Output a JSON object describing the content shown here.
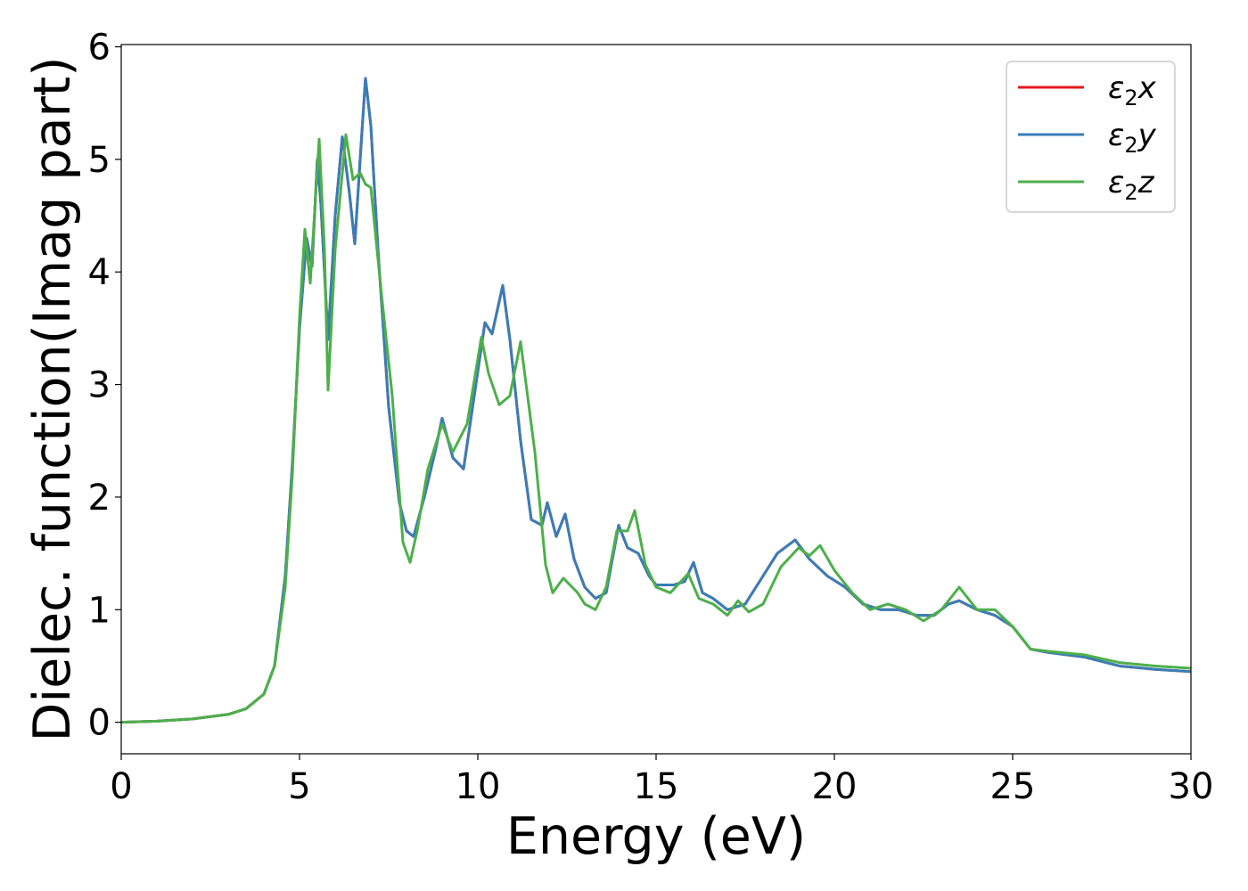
{
  "chart_data": {
    "type": "line",
    "title": "",
    "xlabel": "Energy (eV)",
    "ylabel": "Dielec. function(Imag part)",
    "xlim": [
      0,
      30
    ],
    "ylim": [
      -0.28,
      6.02
    ],
    "xticks": [
      0,
      5,
      10,
      15,
      20,
      25,
      30
    ],
    "yticks": [
      0,
      1,
      2,
      3,
      4,
      5,
      6
    ],
    "grid": false,
    "legend_position": "top-right",
    "series": [
      {
        "name": "ε₂x",
        "label_base": "ε",
        "label_sub": "2",
        "label_var": "x",
        "color": "#e41a1c",
        "points": [
          [
            0,
            0.0
          ],
          [
            1,
            0.01
          ],
          [
            2,
            0.03
          ],
          [
            3,
            0.07
          ],
          [
            3.5,
            0.12
          ],
          [
            4,
            0.25
          ],
          [
            4.3,
            0.5
          ],
          [
            4.6,
            1.3
          ],
          [
            4.8,
            2.3
          ],
          [
            5.0,
            3.5
          ],
          [
            5.2,
            4.3
          ],
          [
            5.35,
            4.05
          ],
          [
            5.5,
            5.0
          ],
          [
            5.6,
            4.6
          ],
          [
            5.8,
            3.4
          ],
          [
            6.0,
            4.5
          ],
          [
            6.2,
            5.2
          ],
          [
            6.4,
            4.7
          ],
          [
            6.55,
            4.25
          ],
          [
            6.7,
            5.0
          ],
          [
            6.85,
            5.72
          ],
          [
            7.0,
            5.3
          ],
          [
            7.2,
            4.2
          ],
          [
            7.5,
            2.8
          ],
          [
            7.8,
            1.95
          ],
          [
            8.0,
            1.7
          ],
          [
            8.2,
            1.65
          ],
          [
            8.5,
            2.0
          ],
          [
            8.8,
            2.4
          ],
          [
            9.0,
            2.7
          ],
          [
            9.3,
            2.35
          ],
          [
            9.6,
            2.25
          ],
          [
            9.9,
            2.9
          ],
          [
            10.2,
            3.55
          ],
          [
            10.4,
            3.45
          ],
          [
            10.7,
            3.88
          ],
          [
            10.9,
            3.4
          ],
          [
            11.2,
            2.5
          ],
          [
            11.5,
            1.8
          ],
          [
            11.8,
            1.75
          ],
          [
            11.95,
            1.95
          ],
          [
            12.2,
            1.65
          ],
          [
            12.45,
            1.85
          ],
          [
            12.7,
            1.45
          ],
          [
            13.0,
            1.2
          ],
          [
            13.3,
            1.1
          ],
          [
            13.6,
            1.15
          ],
          [
            13.95,
            1.75
          ],
          [
            14.2,
            1.55
          ],
          [
            14.5,
            1.5
          ],
          [
            14.8,
            1.3
          ],
          [
            15.0,
            1.22
          ],
          [
            15.5,
            1.22
          ],
          [
            15.8,
            1.25
          ],
          [
            16.05,
            1.42
          ],
          [
            16.3,
            1.15
          ],
          [
            16.6,
            1.1
          ],
          [
            17.0,
            1.0
          ],
          [
            17.5,
            1.05
          ],
          [
            18.0,
            1.3
          ],
          [
            18.4,
            1.5
          ],
          [
            18.9,
            1.62
          ],
          [
            19.3,
            1.45
          ],
          [
            19.8,
            1.3
          ],
          [
            20.3,
            1.2
          ],
          [
            20.8,
            1.05
          ],
          [
            21.3,
            1.0
          ],
          [
            21.8,
            1.0
          ],
          [
            22.3,
            0.95
          ],
          [
            22.8,
            0.95
          ],
          [
            23.2,
            1.05
          ],
          [
            23.5,
            1.08
          ],
          [
            24.0,
            1.0
          ],
          [
            24.5,
            0.95
          ],
          [
            25.0,
            0.85
          ],
          [
            25.5,
            0.65
          ],
          [
            26.0,
            0.62
          ],
          [
            27.0,
            0.58
          ],
          [
            28.0,
            0.5
          ],
          [
            29.0,
            0.47
          ],
          [
            30.0,
            0.45
          ]
        ]
      },
      {
        "name": "ε₂y",
        "label_base": "ε",
        "label_sub": "2",
        "label_var": "y",
        "color": "#377eb8",
        "points": [
          [
            0,
            0.0
          ],
          [
            1,
            0.01
          ],
          [
            2,
            0.03
          ],
          [
            3,
            0.07
          ],
          [
            3.5,
            0.12
          ],
          [
            4,
            0.25
          ],
          [
            4.3,
            0.5
          ],
          [
            4.6,
            1.3
          ],
          [
            4.8,
            2.3
          ],
          [
            5.0,
            3.5
          ],
          [
            5.2,
            4.3
          ],
          [
            5.35,
            4.05
          ],
          [
            5.5,
            5.0
          ],
          [
            5.6,
            4.6
          ],
          [
            5.8,
            3.4
          ],
          [
            6.0,
            4.5
          ],
          [
            6.2,
            5.2
          ],
          [
            6.4,
            4.7
          ],
          [
            6.55,
            4.25
          ],
          [
            6.7,
            5.0
          ],
          [
            6.85,
            5.72
          ],
          [
            7.0,
            5.3
          ],
          [
            7.2,
            4.2
          ],
          [
            7.5,
            2.8
          ],
          [
            7.8,
            1.95
          ],
          [
            8.0,
            1.7
          ],
          [
            8.2,
            1.65
          ],
          [
            8.5,
            2.0
          ],
          [
            8.8,
            2.4
          ],
          [
            9.0,
            2.7
          ],
          [
            9.3,
            2.35
          ],
          [
            9.6,
            2.25
          ],
          [
            9.9,
            2.9
          ],
          [
            10.2,
            3.55
          ],
          [
            10.4,
            3.45
          ],
          [
            10.7,
            3.88
          ],
          [
            10.9,
            3.4
          ],
          [
            11.2,
            2.5
          ],
          [
            11.5,
            1.8
          ],
          [
            11.8,
            1.75
          ],
          [
            11.95,
            1.95
          ],
          [
            12.2,
            1.65
          ],
          [
            12.45,
            1.85
          ],
          [
            12.7,
            1.45
          ],
          [
            13.0,
            1.2
          ],
          [
            13.3,
            1.1
          ],
          [
            13.6,
            1.15
          ],
          [
            13.95,
            1.75
          ],
          [
            14.2,
            1.55
          ],
          [
            14.5,
            1.5
          ],
          [
            14.8,
            1.3
          ],
          [
            15.0,
            1.22
          ],
          [
            15.5,
            1.22
          ],
          [
            15.8,
            1.25
          ],
          [
            16.05,
            1.42
          ],
          [
            16.3,
            1.15
          ],
          [
            16.6,
            1.1
          ],
          [
            17.0,
            1.0
          ],
          [
            17.5,
            1.05
          ],
          [
            18.0,
            1.3
          ],
          [
            18.4,
            1.5
          ],
          [
            18.9,
            1.62
          ],
          [
            19.3,
            1.45
          ],
          [
            19.8,
            1.3
          ],
          [
            20.3,
            1.2
          ],
          [
            20.8,
            1.05
          ],
          [
            21.3,
            1.0
          ],
          [
            21.8,
            1.0
          ],
          [
            22.3,
            0.95
          ],
          [
            22.8,
            0.95
          ],
          [
            23.2,
            1.05
          ],
          [
            23.5,
            1.08
          ],
          [
            24.0,
            1.0
          ],
          [
            24.5,
            0.95
          ],
          [
            25.0,
            0.85
          ],
          [
            25.5,
            0.65
          ],
          [
            26.0,
            0.62
          ],
          [
            27.0,
            0.58
          ],
          [
            28.0,
            0.5
          ],
          [
            29.0,
            0.47
          ],
          [
            30.0,
            0.45
          ]
        ]
      },
      {
        "name": "ε₂z",
        "label_base": "ε",
        "label_sub": "2",
        "label_var": "z",
        "color": "#4daf4a",
        "points": [
          [
            0,
            0.0
          ],
          [
            1,
            0.01
          ],
          [
            2,
            0.03
          ],
          [
            3,
            0.07
          ],
          [
            3.5,
            0.12
          ],
          [
            4,
            0.25
          ],
          [
            4.3,
            0.5
          ],
          [
            4.6,
            1.2
          ],
          [
            4.8,
            2.2
          ],
          [
            5.0,
            3.6
          ],
          [
            5.15,
            4.38
          ],
          [
            5.3,
            3.9
          ],
          [
            5.55,
            5.18
          ],
          [
            5.7,
            4.2
          ],
          [
            5.8,
            2.95
          ],
          [
            6.0,
            4.2
          ],
          [
            6.3,
            5.22
          ],
          [
            6.5,
            4.82
          ],
          [
            6.7,
            4.88
          ],
          [
            6.85,
            4.78
          ],
          [
            7.0,
            4.75
          ],
          [
            7.3,
            3.8
          ],
          [
            7.6,
            2.9
          ],
          [
            7.9,
            1.6
          ],
          [
            8.1,
            1.42
          ],
          [
            8.3,
            1.7
          ],
          [
            8.6,
            2.25
          ],
          [
            9.0,
            2.65
          ],
          [
            9.3,
            2.4
          ],
          [
            9.7,
            2.65
          ],
          [
            10.1,
            3.42
          ],
          [
            10.3,
            3.1
          ],
          [
            10.6,
            2.82
          ],
          [
            10.9,
            2.9
          ],
          [
            11.2,
            3.38
          ],
          [
            11.6,
            2.4
          ],
          [
            11.9,
            1.4
          ],
          [
            12.1,
            1.15
          ],
          [
            12.4,
            1.28
          ],
          [
            12.8,
            1.15
          ],
          [
            13.0,
            1.05
          ],
          [
            13.3,
            1.0
          ],
          [
            13.6,
            1.2
          ],
          [
            13.9,
            1.7
          ],
          [
            14.2,
            1.7
          ],
          [
            14.4,
            1.88
          ],
          [
            14.7,
            1.4
          ],
          [
            15.0,
            1.2
          ],
          [
            15.4,
            1.15
          ],
          [
            15.9,
            1.32
          ],
          [
            16.2,
            1.1
          ],
          [
            16.6,
            1.05
          ],
          [
            17.0,
            0.95
          ],
          [
            17.3,
            1.08
          ],
          [
            17.6,
            0.98
          ],
          [
            18.0,
            1.05
          ],
          [
            18.5,
            1.38
          ],
          [
            19.0,
            1.55
          ],
          [
            19.3,
            1.48
          ],
          [
            19.6,
            1.57
          ],
          [
            20.0,
            1.35
          ],
          [
            20.5,
            1.15
          ],
          [
            21.0,
            1.0
          ],
          [
            21.5,
            1.05
          ],
          [
            22.0,
            1.0
          ],
          [
            22.5,
            0.9
          ],
          [
            23.0,
            1.0
          ],
          [
            23.5,
            1.2
          ],
          [
            24.0,
            1.0
          ],
          [
            24.5,
            1.0
          ],
          [
            25.0,
            0.85
          ],
          [
            25.5,
            0.65
          ],
          [
            26.0,
            0.63
          ],
          [
            27.0,
            0.6
          ],
          [
            28.0,
            0.53
          ],
          [
            29.0,
            0.5
          ],
          [
            30.0,
            0.48
          ]
        ]
      }
    ]
  }
}
